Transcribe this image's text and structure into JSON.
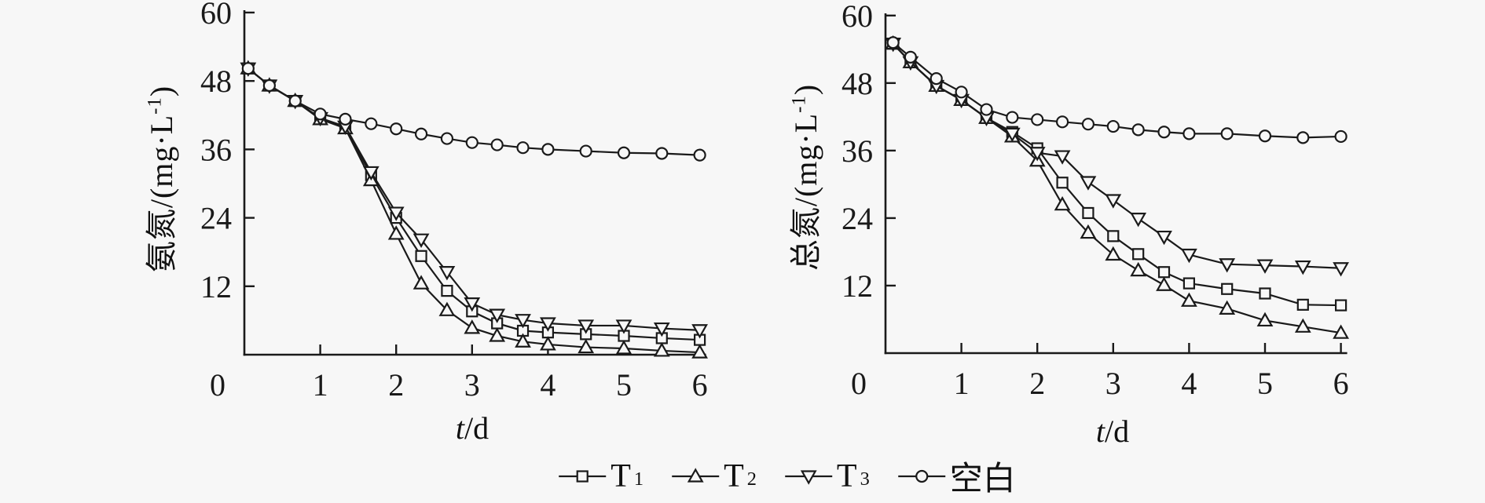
{
  "figure": {
    "background": "#f7f7f7",
    "ink_color": "#1a1a1a"
  },
  "legend": {
    "position": "bottom-center",
    "items": [
      {
        "label": "T",
        "sub": "1",
        "marker": "square"
      },
      {
        "label": "T",
        "sub": "2",
        "marker": "triangle-up"
      },
      {
        "label": "T",
        "sub": "3",
        "marker": "triangle-down"
      },
      {
        "label": "空白",
        "sub": "",
        "marker": "circle"
      }
    ]
  },
  "chart_data": [
    {
      "type": "line",
      "id": "ammonia-nitrogen",
      "ylabel": "氨氮/(mg·L⁻¹)",
      "ylabel_prefix": "氨氮/(mg·L",
      "ylabel_sup": "-1",
      "ylabel_suffix": ")",
      "xlabel": "t/d",
      "xlabel_italic": "t",
      "xlabel_rest": "/d",
      "xlim": [
        0,
        6
      ],
      "ylim": [
        0,
        60
      ],
      "x_ticks": [
        0,
        1,
        2,
        3,
        4,
        5,
        6
      ],
      "y_ticks": [
        12,
        24,
        36,
        48,
        60
      ],
      "origin_label": "0",
      "grid": false,
      "x": [
        0.05,
        0.33,
        0.67,
        1,
        1.33,
        1.67,
        2,
        2.33,
        2.67,
        3,
        3.33,
        3.67,
        4,
        4.5,
        5,
        5.5,
        6
      ],
      "series": [
        {
          "name": "T1",
          "marker": "square",
          "values": [
            50.2,
            47.2,
            44.5,
            41.4,
            39.8,
            31.5,
            24.0,
            17.3,
            11.2,
            7.6,
            5.5,
            4.2,
            3.9,
            3.6,
            3.3,
            2.9,
            2.6
          ]
        },
        {
          "name": "T2",
          "marker": "triangle-up",
          "values": [
            50.2,
            47.2,
            44.5,
            41.3,
            39.7,
            30.6,
            21.2,
            12.5,
            7.8,
            4.7,
            3.3,
            2.3,
            1.8,
            1.3,
            1.1,
            0.7,
            0.4
          ]
        },
        {
          "name": "T3",
          "marker": "triangle-down",
          "values": [
            50.2,
            47.2,
            44.5,
            41.5,
            40.0,
            32.0,
            24.9,
            20.2,
            14.5,
            9.0,
            7.0,
            6.1,
            5.5,
            5.1,
            5.1,
            4.6,
            4.3
          ]
        },
        {
          "name": "空白",
          "marker": "circle",
          "values": [
            50.2,
            47.2,
            44.5,
            42.2,
            41.3,
            40.5,
            39.6,
            38.7,
            37.9,
            37.2,
            36.8,
            36.3,
            36.0,
            35.7,
            35.4,
            35.3,
            35.0
          ]
        }
      ]
    },
    {
      "type": "line",
      "id": "total-nitrogen",
      "ylabel": "总氮/(mg·L⁻¹)",
      "ylabel_prefix": "总氮/(mg·L",
      "ylabel_sup": "-1",
      "ylabel_suffix": ")",
      "xlabel": "t/d",
      "xlabel_italic": "t",
      "xlabel_rest": "/d",
      "xlim": [
        0,
        6
      ],
      "ylim": [
        0,
        60
      ],
      "x_ticks": [
        0,
        1,
        2,
        3,
        4,
        5,
        6
      ],
      "y_ticks": [
        12,
        24,
        36,
        48,
        60
      ],
      "origin_label": "0",
      "grid": false,
      "x": [
        0.1,
        0.33,
        0.67,
        1,
        1.33,
        1.67,
        2,
        2.33,
        2.67,
        3,
        3.33,
        3.67,
        4,
        4.5,
        5,
        5.5,
        6
      ],
      "series": [
        {
          "name": "T1",
          "marker": "square",
          "values": [
            55.0,
            51.7,
            47.5,
            45.0,
            41.8,
            39.3,
            36.4,
            30.3,
            24.9,
            20.8,
            17.6,
            14.4,
            12.4,
            11.4,
            10.6,
            8.6,
            8.5
          ]
        },
        {
          "name": "T2",
          "marker": "triangle-up",
          "values": [
            55.0,
            51.7,
            47.5,
            45.0,
            41.8,
            38.5,
            34.2,
            26.4,
            21.4,
            17.5,
            14.7,
            12.1,
            9.3,
            7.9,
            5.8,
            4.7,
            3.6
          ]
        },
        {
          "name": "T3",
          "marker": "triangle-down",
          "values": [
            55.0,
            51.7,
            47.5,
            45.0,
            41.8,
            39.0,
            35.6,
            35.0,
            30.4,
            27.2,
            23.9,
            20.7,
            17.5,
            15.8,
            15.6,
            15.4,
            15.1
          ]
        },
        {
          "name": "空白",
          "marker": "circle",
          "values": [
            55.2,
            52.6,
            48.8,
            46.4,
            43.3,
            41.9,
            41.5,
            41.1,
            40.7,
            40.3,
            39.7,
            39.3,
            39.0,
            39.0,
            38.6,
            38.3,
            38.5
          ]
        }
      ]
    }
  ]
}
